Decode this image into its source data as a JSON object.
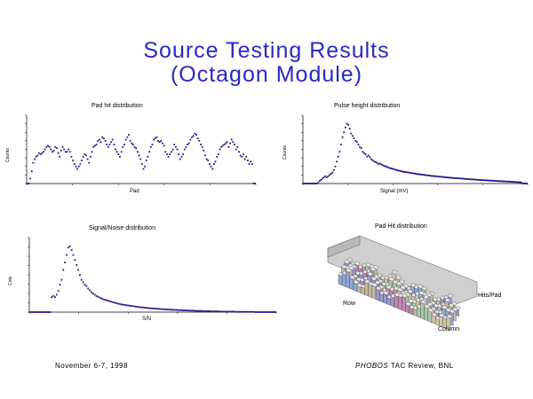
{
  "slide": {
    "title_line1": "Source Testing Results",
    "title_line2": "(Octagon Module)",
    "footer_left": "November 6-7, 1998",
    "footer_right_italic": "PHOBOS",
    "footer_right": " TAC Review, BNL"
  },
  "colors": {
    "title": "#2828c8",
    "marker": "#1a1a8c"
  },
  "chart_data": [
    {
      "type": "scatter",
      "title": "Pad hit distribution",
      "xlabel": "Pad",
      "ylabel": "Counts",
      "y": [
        0,
        0,
        20,
        50,
        85,
        100,
        110,
        115,
        125,
        120,
        125,
        130,
        140,
        150,
        155,
        150,
        140,
        130,
        135,
        150,
        145,
        125,
        110,
        135,
        150,
        140,
        130,
        130,
        140,
        130,
        110,
        95,
        80,
        70,
        60,
        70,
        80,
        95,
        110,
        120,
        115,
        100,
        85,
        110,
        130,
        150,
        155,
        160,
        175,
        180,
        170,
        190,
        185,
        175,
        160,
        150,
        160,
        170,
        180,
        160,
        140,
        130,
        120,
        110,
        130,
        150,
        160,
        180,
        190,
        200,
        175,
        165,
        160,
        150,
        145,
        130,
        115,
        100,
        80,
        60,
        70,
        95,
        110,
        130,
        150,
        160,
        180,
        185,
        190,
        175,
        170,
        175,
        165,
        155,
        130,
        120,
        110,
        120,
        130,
        140,
        160,
        150,
        140,
        120,
        100,
        110,
        120,
        140,
        150,
        160,
        165,
        180,
        190,
        195,
        205,
        200,
        185,
        175,
        160,
        150,
        135,
        115,
        100,
        95,
        80,
        70,
        60,
        80,
        90,
        110,
        120,
        140,
        150,
        155,
        160,
        165,
        170,
        150,
        165,
        180,
        170,
        160,
        140,
        150,
        130,
        115,
        110,
        120,
        100,
        110,
        95,
        80,
        90,
        80,
        0,
        0
      ],
      "ylim": [
        0,
        280
      ]
    },
    {
      "type": "scatter",
      "title": "Pulse height distribution",
      "xlabel": "Signal (mV)",
      "ylabel": "Counts",
      "y": [
        0,
        0,
        0,
        0,
        0,
        0,
        0,
        0,
        0,
        0,
        3,
        10,
        15,
        20,
        25,
        30,
        25,
        30,
        35,
        40,
        45,
        55,
        70,
        90,
        110,
        130,
        160,
        190,
        210,
        230,
        245,
        240,
        225,
        205,
        195,
        185,
        175,
        170,
        160,
        150,
        145,
        130,
        125,
        120,
        110,
        115,
        108,
        100,
        95,
        90,
        88,
        85,
        80,
        82,
        78,
        75,
        72,
        70,
        68,
        65,
        63,
        62,
        60,
        58,
        56,
        55,
        53,
        52,
        50,
        49,
        48,
        47,
        46,
        45,
        44,
        43,
        42,
        41,
        40,
        39,
        38,
        37,
        37,
        36,
        35,
        34,
        34,
        33,
        32,
        31,
        31,
        30,
        30,
        29,
        28,
        28,
        27,
        27,
        26,
        25,
        25,
        24,
        24,
        23,
        23,
        22,
        22,
        22,
        21,
        21,
        20,
        20,
        19,
        19,
        18,
        18,
        17,
        17,
        17,
        16,
        16,
        15,
        15,
        15,
        14,
        14,
        13,
        13,
        13,
        12,
        12,
        12,
        11,
        11,
        11,
        10,
        10,
        10,
        9,
        9,
        9,
        8,
        8,
        8,
        7,
        7,
        7,
        6,
        6,
        6,
        5,
        5,
        0,
        0,
        0,
        0
      ],
      "ylim": [
        0,
        280
      ]
    },
    {
      "type": "scatter",
      "title": "Signal/Noise distribution",
      "xlabel": "S/N",
      "ylabel": "Cnts",
      "y": [
        0,
        0,
        0,
        0,
        0,
        0,
        0,
        0,
        0,
        0,
        0,
        0,
        0,
        60,
        65,
        60,
        70,
        85,
        110,
        130,
        170,
        200,
        230,
        260,
        265,
        250,
        230,
        210,
        190,
        170,
        150,
        130,
        120,
        110,
        105,
        95,
        88,
        80,
        75,
        70,
        65,
        62,
        58,
        55,
        52,
        50,
        48,
        46,
        44,
        42,
        40,
        38,
        36,
        34,
        33,
        31,
        30,
        29,
        28,
        27,
        26,
        25,
        24,
        23,
        22,
        21,
        20,
        19,
        19,
        18,
        17,
        17,
        16,
        15,
        15,
        14,
        14,
        13,
        13,
        12,
        12,
        11,
        11,
        10,
        10,
        10,
        9,
        9,
        9,
        8,
        8,
        8,
        7,
        7,
        7,
        7,
        6,
        6,
        6,
        6,
        5,
        5,
        5,
        5,
        4,
        4,
        4,
        4,
        4,
        3,
        3,
        3,
        3,
        3,
        3,
        2,
        2,
        2,
        2,
        2,
        2,
        2,
        2,
        2,
        1,
        1,
        1,
        1,
        1,
        1,
        1,
        1,
        1,
        1,
        1,
        1,
        0,
        0,
        0,
        0,
        0,
        0,
        0,
        0,
        0,
        0,
        0,
        0,
        0
      ],
      "ylim": [
        0,
        300
      ]
    },
    {
      "type": "bar",
      "title": "Pad Hit distribution",
      "xlabel": "Column",
      "ylabel": "Hits/Pad",
      "zlabel": "Row",
      "rows": 4,
      "cols": 30
    }
  ]
}
